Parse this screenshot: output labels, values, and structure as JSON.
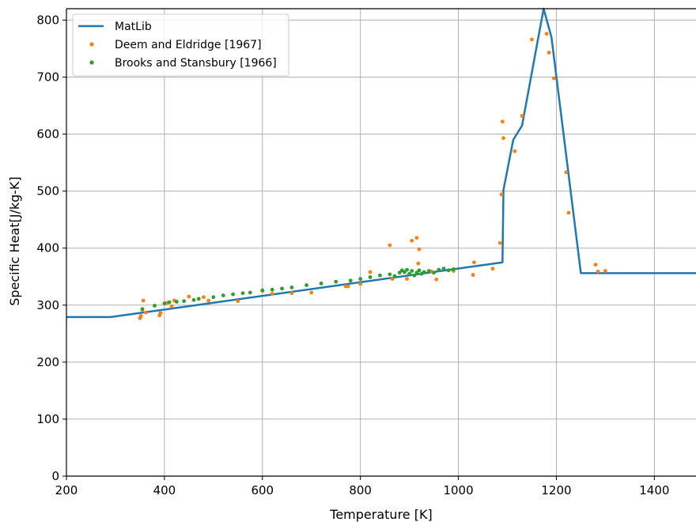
{
  "chart_data": {
    "type": "scatter",
    "xlabel": "Temperature [K]",
    "ylabel": "Specific Heat[J/kg-K]",
    "xlim": [
      200,
      1485
    ],
    "ylim": [
      0,
      820
    ],
    "xticks": [
      "200",
      "400",
      "600",
      "800",
      "1000",
      "1200",
      "1400"
    ],
    "yticks": [
      "0",
      "100",
      "200",
      "300",
      "400",
      "500",
      "600",
      "700",
      "800"
    ],
    "grid": true,
    "legend_position": "top-left",
    "series": [
      {
        "name": "MatLib",
        "kind": "line",
        "color": "#1f77b4",
        "points": [
          [
            200,
            279
          ],
          [
            290,
            279
          ],
          [
            1090,
            375
          ],
          [
            1092,
            502
          ],
          [
            1112,
            590
          ],
          [
            1130,
            615
          ],
          [
            1174,
            820
          ],
          [
            1190,
            770
          ],
          [
            1250,
            356
          ],
          [
            1485,
            356
          ]
        ]
      },
      {
        "name": "Deem and Eldridge [1967]",
        "kind": "scatter",
        "color": "#ff7f0e",
        "points": [
          [
            350,
            277
          ],
          [
            352,
            281
          ],
          [
            355,
            292
          ],
          [
            357,
            308
          ],
          [
            362,
            287
          ],
          [
            390,
            282
          ],
          [
            392,
            286
          ],
          [
            405,
            304
          ],
          [
            415,
            298
          ],
          [
            420,
            308
          ],
          [
            450,
            315
          ],
          [
            470,
            311
          ],
          [
            480,
            314
          ],
          [
            490,
            308
          ],
          [
            550,
            307
          ],
          [
            600,
            325
          ],
          [
            620,
            320
          ],
          [
            660,
            321
          ],
          [
            700,
            322
          ],
          [
            770,
            333
          ],
          [
            775,
            333
          ],
          [
            800,
            337
          ],
          [
            820,
            358
          ],
          [
            860,
            405
          ],
          [
            865,
            346
          ],
          [
            895,
            346
          ],
          [
            905,
            413
          ],
          [
            915,
            418
          ],
          [
            918,
            373
          ],
          [
            920,
            398
          ],
          [
            945,
            359
          ],
          [
            955,
            345
          ],
          [
            990,
            360
          ],
          [
            1030,
            353
          ],
          [
            1032,
            375
          ],
          [
            1070,
            364
          ],
          [
            1085,
            409
          ],
          [
            1088,
            494
          ],
          [
            1090,
            622
          ],
          [
            1092,
            593
          ],
          [
            1115,
            570
          ],
          [
            1130,
            632
          ],
          [
            1150,
            766
          ],
          [
            1180,
            776
          ],
          [
            1185,
            743
          ],
          [
            1195,
            698
          ],
          [
            1220,
            533
          ],
          [
            1225,
            462
          ],
          [
            1280,
            371
          ],
          [
            1285,
            359
          ],
          [
            1300,
            360
          ]
        ]
      },
      {
        "name": "Brooks and Stansbury [1966]",
        "kind": "scatter",
        "color": "#2ca02c",
        "points": [
          [
            355,
            293
          ],
          [
            380,
            299
          ],
          [
            400,
            303
          ],
          [
            410,
            305
          ],
          [
            425,
            306
          ],
          [
            440,
            307
          ],
          [
            460,
            309
          ],
          [
            470,
            311
          ],
          [
            500,
            314
          ],
          [
            520,
            317
          ],
          [
            540,
            319
          ],
          [
            560,
            321
          ],
          [
            575,
            322
          ],
          [
            600,
            326
          ],
          [
            620,
            327
          ],
          [
            640,
            329
          ],
          [
            660,
            331
          ],
          [
            690,
            335
          ],
          [
            720,
            338
          ],
          [
            750,
            341
          ],
          [
            780,
            343
          ],
          [
            800,
            346
          ],
          [
            820,
            349
          ],
          [
            840,
            352
          ],
          [
            860,
            354
          ],
          [
            870,
            351
          ],
          [
            880,
            357
          ],
          [
            885,
            361
          ],
          [
            890,
            358
          ],
          [
            895,
            362
          ],
          [
            900,
            355
          ],
          [
            905,
            360
          ],
          [
            910,
            352
          ],
          [
            915,
            357
          ],
          [
            920,
            361
          ],
          [
            925,
            355
          ],
          [
            930,
            358
          ],
          [
            940,
            360
          ],
          [
            950,
            357
          ],
          [
            960,
            362
          ],
          [
            970,
            364
          ],
          [
            980,
            361
          ],
          [
            990,
            363
          ]
        ]
      }
    ]
  }
}
